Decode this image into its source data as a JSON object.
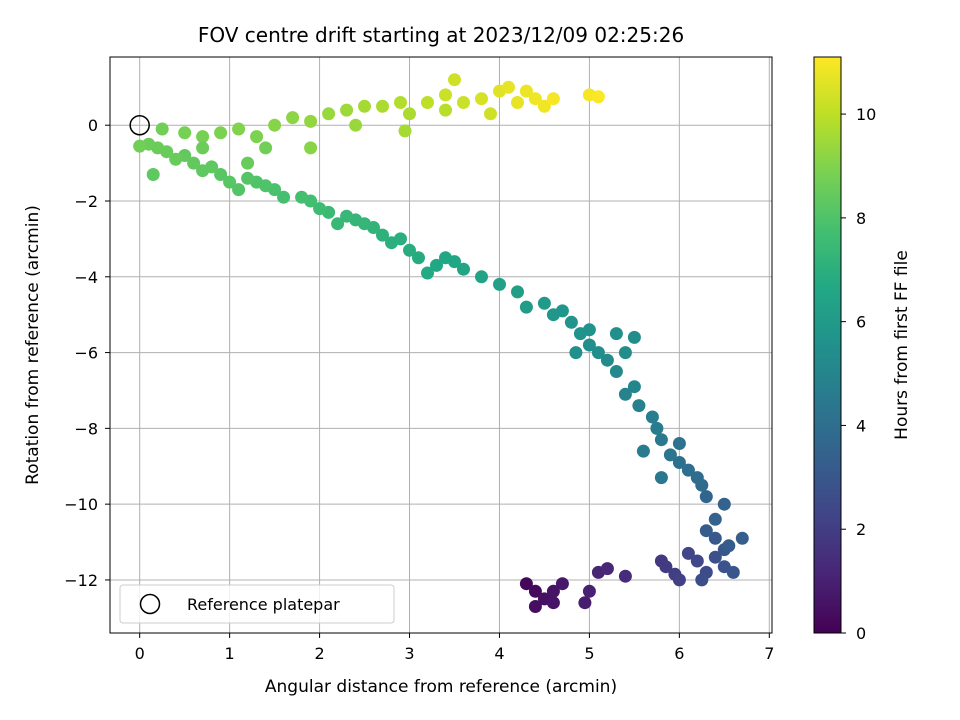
{
  "chart_data": {
    "type": "scatter",
    "title": "FOV centre drift starting at 2023/12/09 02:25:26",
    "xlabel": "Angular distance from reference (arcmin)",
    "ylabel": "Rotation from reference (arcmin)",
    "xlim": [
      -0.33,
      7.03
    ],
    "ylim": [
      -13.4,
      1.8
    ],
    "x_ticks": [
      0,
      1,
      2,
      3,
      4,
      5,
      6,
      7
    ],
    "y_ticks": [
      0,
      -2,
      -4,
      -6,
      -8,
      -10,
      -12
    ],
    "grid": true,
    "legend": {
      "location": "lower-left",
      "entries": [
        "Reference platepar"
      ]
    },
    "colorbar": {
      "label": "Hours from first FF file",
      "min": 0,
      "max": 11.1,
      "ticks": [
        0,
        2,
        4,
        6,
        8,
        10
      ],
      "colormap": "viridis"
    },
    "reference_point": {
      "x": 0,
      "y": 0
    },
    "series": [
      {
        "marker": "circle",
        "fields": [
          "x",
          "y",
          "hours"
        ],
        "points": [
          [
            4.3,
            -12.1,
            0.2
          ],
          [
            4.4,
            -12.3,
            0.3
          ],
          [
            4.4,
            -12.7,
            0.4
          ],
          [
            4.5,
            -12.5,
            0.5
          ],
          [
            4.6,
            -12.6,
            0.6
          ],
          [
            4.7,
            -12.1,
            0.7
          ],
          [
            4.6,
            -12.3,
            0.6
          ],
          [
            4.95,
            -12.6,
            0.9
          ],
          [
            5.0,
            -12.3,
            1.0
          ],
          [
            5.1,
            -11.8,
            1.1
          ],
          [
            5.2,
            -11.7,
            1.2
          ],
          [
            5.4,
            -11.9,
            1.4
          ],
          [
            5.8,
            -11.5,
            1.8
          ],
          [
            5.85,
            -11.65,
            1.9
          ],
          [
            5.95,
            -11.85,
            2.0
          ],
          [
            6.0,
            -12.0,
            2.1
          ],
          [
            6.1,
            -11.3,
            2.3
          ],
          [
            6.2,
            -11.5,
            2.4
          ],
          [
            6.3,
            -11.8,
            2.5
          ],
          [
            6.25,
            -12.0,
            2.6
          ],
          [
            6.4,
            -11.4,
            2.7
          ],
          [
            6.5,
            -11.65,
            2.8
          ],
          [
            6.6,
            -11.8,
            2.9
          ],
          [
            6.5,
            -11.2,
            3.0
          ],
          [
            6.4,
            -10.9,
            3.1
          ],
          [
            6.3,
            -10.7,
            3.2
          ],
          [
            6.55,
            -11.1,
            3.2
          ],
          [
            6.7,
            -10.9,
            3.3
          ],
          [
            6.4,
            -10.4,
            3.4
          ],
          [
            6.5,
            -10.0,
            3.5
          ],
          [
            6.3,
            -9.8,
            3.6
          ],
          [
            6.25,
            -9.5,
            3.8
          ],
          [
            6.2,
            -9.3,
            3.9
          ],
          [
            6.1,
            -9.1,
            4.0
          ],
          [
            6.0,
            -8.9,
            4.1
          ],
          [
            6.0,
            -8.4,
            4.2
          ],
          [
            5.9,
            -8.7,
            4.3
          ],
          [
            5.8,
            -9.3,
            4.4
          ],
          [
            5.8,
            -8.3,
            4.5
          ],
          [
            5.75,
            -8.0,
            4.6
          ],
          [
            5.7,
            -7.7,
            4.7
          ],
          [
            5.6,
            -8.6,
            4.6
          ],
          [
            5.55,
            -7.4,
            4.8
          ],
          [
            5.4,
            -7.1,
            4.9
          ],
          [
            5.5,
            -6.9,
            5.0
          ],
          [
            5.3,
            -6.5,
            5.2
          ],
          [
            5.2,
            -6.2,
            5.3
          ],
          [
            5.1,
            -6.0,
            5.4
          ],
          [
            5.0,
            -5.8,
            5.5
          ],
          [
            4.9,
            -5.5,
            5.6
          ],
          [
            4.8,
            -5.2,
            5.7
          ],
          [
            4.7,
            -4.9,
            5.8
          ],
          [
            4.6,
            -5.0,
            5.8
          ],
          [
            5.0,
            -5.4,
            5.6
          ],
          [
            5.3,
            -5.5,
            5.5
          ],
          [
            5.5,
            -5.6,
            5.4
          ],
          [
            5.4,
            -6.0,
            5.4
          ],
          [
            4.85,
            -6.0,
            5.5
          ],
          [
            4.5,
            -4.7,
            6.0
          ],
          [
            4.3,
            -4.8,
            6.1
          ],
          [
            4.2,
            -4.4,
            6.2
          ],
          [
            4.0,
            -4.2,
            6.3
          ],
          [
            3.8,
            -4.0,
            6.4
          ],
          [
            3.6,
            -3.8,
            6.5
          ],
          [
            3.5,
            -3.6,
            6.6
          ],
          [
            3.4,
            -3.5,
            6.6
          ],
          [
            3.3,
            -3.7,
            6.6
          ],
          [
            3.2,
            -3.9,
            6.7
          ],
          [
            3.1,
            -3.5,
            6.8
          ],
          [
            3.0,
            -3.3,
            6.9
          ],
          [
            2.9,
            -3.0,
            7.0
          ],
          [
            2.8,
            -3.1,
            7.0
          ],
          [
            2.7,
            -2.9,
            7.1
          ],
          [
            2.6,
            -2.7,
            7.2
          ],
          [
            2.5,
            -2.6,
            7.3
          ],
          [
            2.4,
            -2.5,
            7.3
          ],
          [
            2.3,
            -2.4,
            7.4
          ],
          [
            2.2,
            -2.6,
            7.4
          ],
          [
            2.1,
            -2.3,
            7.5
          ],
          [
            2.0,
            -2.2,
            7.6
          ],
          [
            1.9,
            -2.0,
            7.7
          ],
          [
            1.8,
            -1.9,
            7.8
          ],
          [
            1.6,
            -1.9,
            7.8
          ],
          [
            1.5,
            -1.7,
            7.9
          ],
          [
            1.4,
            -1.6,
            8.0
          ],
          [
            1.3,
            -1.5,
            8.0
          ],
          [
            1.2,
            -1.4,
            8.1
          ],
          [
            1.1,
            -1.7,
            8.1
          ],
          [
            1.0,
            -1.5,
            8.2
          ],
          [
            0.9,
            -1.3,
            8.2
          ],
          [
            0.8,
            -1.1,
            8.3
          ],
          [
            0.7,
            -1.2,
            8.3
          ],
          [
            0.6,
            -1.0,
            8.4
          ],
          [
            0.5,
            -0.8,
            8.4
          ],
          [
            0.4,
            -0.9,
            8.5
          ],
          [
            0.3,
            -0.7,
            8.5
          ],
          [
            0.2,
            -0.6,
            8.6
          ],
          [
            0.1,
            -0.5,
            8.6
          ],
          [
            0.0,
            -0.55,
            8.7
          ],
          [
            0.15,
            -1.3,
            8.3
          ],
          [
            0.25,
            -0.1,
            8.7
          ],
          [
            0.5,
            -0.2,
            8.8
          ],
          [
            0.7,
            -0.3,
            8.8
          ],
          [
            0.9,
            -0.2,
            8.9
          ],
          [
            1.1,
            -0.1,
            9.0
          ],
          [
            1.3,
            -0.3,
            8.9
          ],
          [
            1.4,
            -0.6,
            8.7
          ],
          [
            1.5,
            0.0,
            9.1
          ],
          [
            1.7,
            0.2,
            9.2
          ],
          [
            1.9,
            0.1,
            9.3
          ],
          [
            2.1,
            0.3,
            9.4
          ],
          [
            2.3,
            0.4,
            9.5
          ],
          [
            2.5,
            0.5,
            9.6
          ],
          [
            2.7,
            0.5,
            9.7
          ],
          [
            2.9,
            0.6,
            9.8
          ],
          [
            3.0,
            0.3,
            9.7
          ],
          [
            2.95,
            -0.15,
            9.6
          ],
          [
            3.2,
            0.6,
            10.0
          ],
          [
            3.4,
            0.8,
            10.2
          ],
          [
            3.5,
            1.2,
            10.3
          ],
          [
            3.6,
            0.6,
            10.2
          ],
          [
            3.8,
            0.7,
            10.4
          ],
          [
            3.9,
            0.3,
            10.3
          ],
          [
            4.0,
            0.9,
            10.6
          ],
          [
            4.1,
            1.0,
            10.7
          ],
          [
            4.2,
            0.6,
            10.7
          ],
          [
            4.3,
            0.9,
            10.8
          ],
          [
            4.4,
            0.7,
            10.9
          ],
          [
            4.5,
            0.5,
            10.9
          ],
          [
            4.6,
            0.7,
            11.0
          ],
          [
            3.4,
            0.4,
            9.9
          ],
          [
            2.4,
            0.0,
            9.4
          ],
          [
            1.9,
            -0.6,
            9.1
          ],
          [
            1.2,
            -1.0,
            8.5
          ],
          [
            0.7,
            -0.6,
            8.6
          ],
          [
            5.0,
            0.8,
            11.0
          ],
          [
            5.1,
            0.75,
            11.05
          ]
        ]
      }
    ]
  }
}
